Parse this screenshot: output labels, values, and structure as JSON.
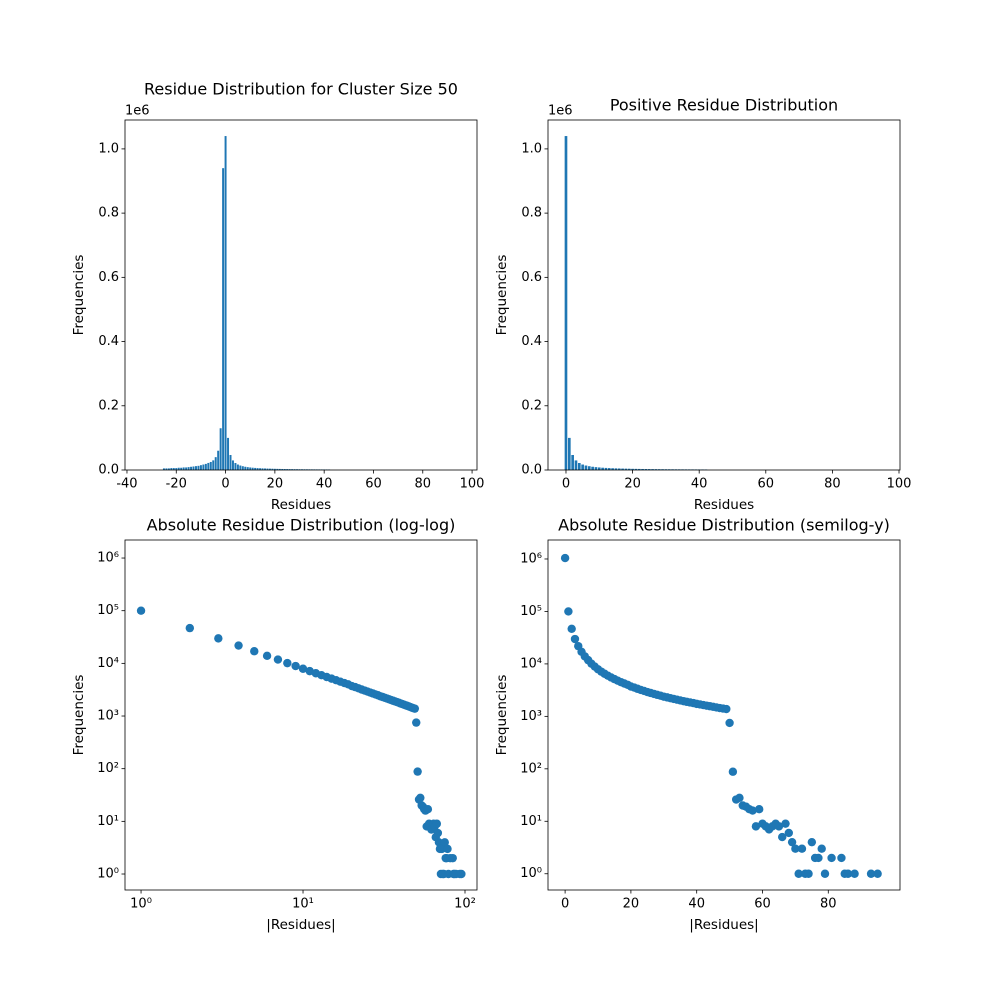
{
  "chart_data": [
    {
      "type": "bar",
      "title": "Residue Distribution for Cluster Size 50",
      "xlabel": "Residues",
      "ylabel": "Frequencies",
      "y_offset_text": "1e6",
      "color": "#1f77b4",
      "x": [
        -25,
        -24,
        -23,
        -22,
        -21,
        -20,
        -19,
        -18,
        -17,
        -16,
        -15,
        -14,
        -13,
        -12,
        -11,
        -10,
        -9,
        -8,
        -7,
        -6,
        -5,
        -4,
        -3,
        -2,
        -1,
        0,
        1,
        2,
        3,
        4,
        5,
        6,
        7,
        8,
        9,
        10,
        11,
        12,
        13,
        14,
        15,
        16,
        17,
        18,
        19,
        20,
        21,
        22,
        23,
        24,
        25,
        26,
        27,
        28,
        29,
        30,
        31,
        32,
        33,
        34,
        35,
        36,
        37,
        38,
        39,
        40,
        41,
        42
      ],
      "values": [
        5000,
        5000,
        5000,
        6000,
        6000,
        6000,
        7000,
        7000,
        8000,
        8000,
        9000,
        10000,
        11000,
        12000,
        13000,
        15000,
        17000,
        19000,
        22000,
        25000,
        30000,
        40000,
        60000,
        130000,
        940000,
        1040000,
        100000,
        46700,
        29800,
        21800,
        17000,
        13900,
        11800,
        10100,
        8900,
        7900,
        7120,
        6490,
        5960,
        5510,
        5130,
        4790,
        4490,
        4230,
        4000,
        3710,
        3540,
        3360,
        3190,
        3050,
        2910,
        2790,
        2680,
        2570,
        2480,
        2370,
        2300,
        2220,
        2150,
        2080,
        2010,
        1950,
        1890,
        1840,
        1790,
        1730,
        1690,
        1640
      ],
      "xlim": [
        -40.8,
        102
      ],
      "xticks": [
        -40,
        -20,
        0,
        20,
        40,
        60,
        80,
        100
      ],
      "ylim": [
        0,
        1090000
      ],
      "yticks": [
        {
          "value": 0,
          "label": "0.0"
        },
        {
          "value": 200000,
          "label": "0.2"
        },
        {
          "value": 400000,
          "label": "0.4"
        },
        {
          "value": 600000,
          "label": "0.6"
        },
        {
          "value": 800000,
          "label": "0.8"
        },
        {
          "value": 1000000,
          "label": "1.0"
        }
      ]
    },
    {
      "type": "bar",
      "title": "Positive Residue Distribution",
      "xlabel": "Residues",
      "ylabel": "Frequencies",
      "y_offset_text": "1e6",
      "color": "#1f77b4",
      "x": [
        0,
        1,
        2,
        3,
        4,
        5,
        6,
        7,
        8,
        9,
        10,
        11,
        12,
        13,
        14,
        15,
        16,
        17,
        18,
        19,
        20,
        21,
        22,
        23,
        24,
        25,
        26,
        27,
        28,
        29,
        30,
        31,
        32,
        33,
        34,
        35,
        36,
        37,
        38,
        39,
        40,
        41,
        42
      ],
      "values": [
        1040000,
        100000,
        46700,
        29800,
        21800,
        17000,
        13900,
        11800,
        10100,
        8900,
        7900,
        7120,
        6490,
        5960,
        5510,
        5130,
        4790,
        4490,
        4230,
        4000,
        3710,
        3540,
        3360,
        3190,
        3050,
        2910,
        2790,
        2680,
        2570,
        2480,
        2370,
        2300,
        2220,
        2150,
        2080,
        2010,
        1950,
        1890,
        1840,
        1790,
        1730,
        1690,
        1640
      ],
      "xlim": [
        -5.4,
        100.3
      ],
      "xticks": [
        0,
        20,
        40,
        60,
        80,
        100
      ],
      "ylim": [
        0,
        1090000
      ],
      "yticks": [
        {
          "value": 0,
          "label": "0.0"
        },
        {
          "value": 200000,
          "label": "0.2"
        },
        {
          "value": 400000,
          "label": "0.4"
        },
        {
          "value": 600000,
          "label": "0.6"
        },
        {
          "value": 800000,
          "label": "0.8"
        },
        {
          "value": 1000000,
          "label": "1.0"
        }
      ]
    },
    {
      "type": "scatter",
      "title": "Absolute Residue Distribution (log-log)",
      "xlabel": "|Residues|",
      "ylabel": "Frequencies",
      "color": "#1f77b4",
      "xscale": "log",
      "yscale": "log",
      "x": [
        1,
        2,
        3,
        4,
        5,
        6,
        7,
        8,
        9,
        10,
        11,
        12,
        13,
        14,
        15,
        16,
        17,
        18,
        19,
        20,
        21,
        22,
        23,
        24,
        25,
        26,
        27,
        28,
        29,
        30,
        31,
        32,
        33,
        34,
        35,
        36,
        37,
        38,
        39,
        40,
        41,
        42,
        43,
        44,
        45,
        46,
        47,
        48,
        49,
        50,
        51,
        52,
        53,
        54,
        55,
        56,
        57,
        58,
        59,
        60,
        61,
        62,
        63,
        64,
        65,
        66,
        67,
        68,
        69,
        70,
        71,
        72,
        73,
        74,
        75,
        76,
        77,
        78,
        79,
        81,
        84,
        85,
        86,
        88,
        93,
        95
      ],
      "values": [
        100000,
        46700,
        29800,
        21800,
        17000,
        13900,
        11800,
        10100,
        8900,
        7900,
        7120,
        6490,
        5960,
        5510,
        5130,
        4790,
        4490,
        4230,
        4000,
        3710,
        3540,
        3360,
        3190,
        3050,
        2910,
        2790,
        2680,
        2570,
        2480,
        2370,
        2300,
        2220,
        2150,
        2080,
        2010,
        1950,
        1890,
        1840,
        1790,
        1730,
        1690,
        1640,
        1600,
        1560,
        1520,
        1480,
        1440,
        1410,
        1380,
        750,
        88,
        26,
        28,
        20,
        19,
        17,
        16,
        8,
        17,
        9,
        8,
        7,
        8,
        9,
        8,
        5,
        9,
        6,
        4,
        3,
        1,
        3,
        1,
        1,
        4,
        2,
        2,
        3,
        1,
        2,
        2,
        1,
        1,
        1,
        1,
        1
      ],
      "xlim": [
        0.796,
        118.6
      ],
      "xticks": [
        {
          "value": 1,
          "label": "10⁰"
        },
        {
          "value": 10,
          "label": "10¹"
        },
        {
          "value": 100,
          "label": "10²"
        }
      ],
      "ylim": [
        0.497,
        2200000
      ],
      "yticks": [
        {
          "value": 1,
          "label": "10⁰"
        },
        {
          "value": 10,
          "label": "10¹"
        },
        {
          "value": 100,
          "label": "10²"
        },
        {
          "value": 1000,
          "label": "10³"
        },
        {
          "value": 10000,
          "label": "10⁴"
        },
        {
          "value": 100000,
          "label": "10⁵"
        },
        {
          "value": 1000000,
          "label": "10⁶"
        }
      ]
    },
    {
      "type": "scatter",
      "title": "Absolute Residue Distribution (semilog-y)",
      "xlabel": "|Residues|",
      "ylabel": "Frequencies",
      "color": "#1f77b4",
      "yscale": "log",
      "x": [
        0,
        1,
        2,
        3,
        4,
        5,
        6,
        7,
        8,
        9,
        10,
        11,
        12,
        13,
        14,
        15,
        16,
        17,
        18,
        19,
        20,
        21,
        22,
        23,
        24,
        25,
        26,
        27,
        28,
        29,
        30,
        31,
        32,
        33,
        34,
        35,
        36,
        37,
        38,
        39,
        40,
        41,
        42,
        43,
        44,
        45,
        46,
        47,
        48,
        49,
        50,
        51,
        52,
        53,
        54,
        55,
        56,
        57,
        58,
        59,
        60,
        61,
        62,
        63,
        64,
        65,
        66,
        67,
        68,
        69,
        70,
        71,
        72,
        73,
        74,
        75,
        76,
        77,
        78,
        79,
        81,
        84,
        85,
        86,
        88,
        93,
        95
      ],
      "values": [
        1040000,
        100000,
        46700,
        29800,
        21800,
        17000,
        13900,
        11800,
        10100,
        8900,
        7900,
        7120,
        6490,
        5960,
        5510,
        5130,
        4790,
        4490,
        4230,
        4000,
        3710,
        3540,
        3360,
        3190,
        3050,
        2910,
        2790,
        2680,
        2570,
        2480,
        2370,
        2300,
        2220,
        2150,
        2080,
        2010,
        1950,
        1890,
        1840,
        1790,
        1730,
        1690,
        1640,
        1600,
        1560,
        1520,
        1480,
        1440,
        1410,
        1380,
        750,
        88,
        26,
        28,
        20,
        19,
        17,
        16,
        8,
        17,
        9,
        8,
        7,
        8,
        9,
        8,
        5,
        9,
        6,
        4,
        3,
        1,
        3,
        1,
        1,
        4,
        2,
        2,
        3,
        1,
        2,
        2,
        1,
        1,
        1,
        1,
        1
      ],
      "xlim": [
        -5.2,
        101.8
      ],
      "xticks": [
        0,
        20,
        40,
        60,
        80
      ],
      "ylim": [
        0.49,
        2300000
      ],
      "yticks": [
        {
          "value": 1,
          "label": "10⁰"
        },
        {
          "value": 10,
          "label": "10¹"
        },
        {
          "value": 100,
          "label": "10²"
        },
        {
          "value": 1000,
          "label": "10³"
        },
        {
          "value": 10000,
          "label": "10⁴"
        },
        {
          "value": 100000,
          "label": "10⁵"
        },
        {
          "value": 1000000,
          "label": "10⁶"
        }
      ]
    }
  ]
}
